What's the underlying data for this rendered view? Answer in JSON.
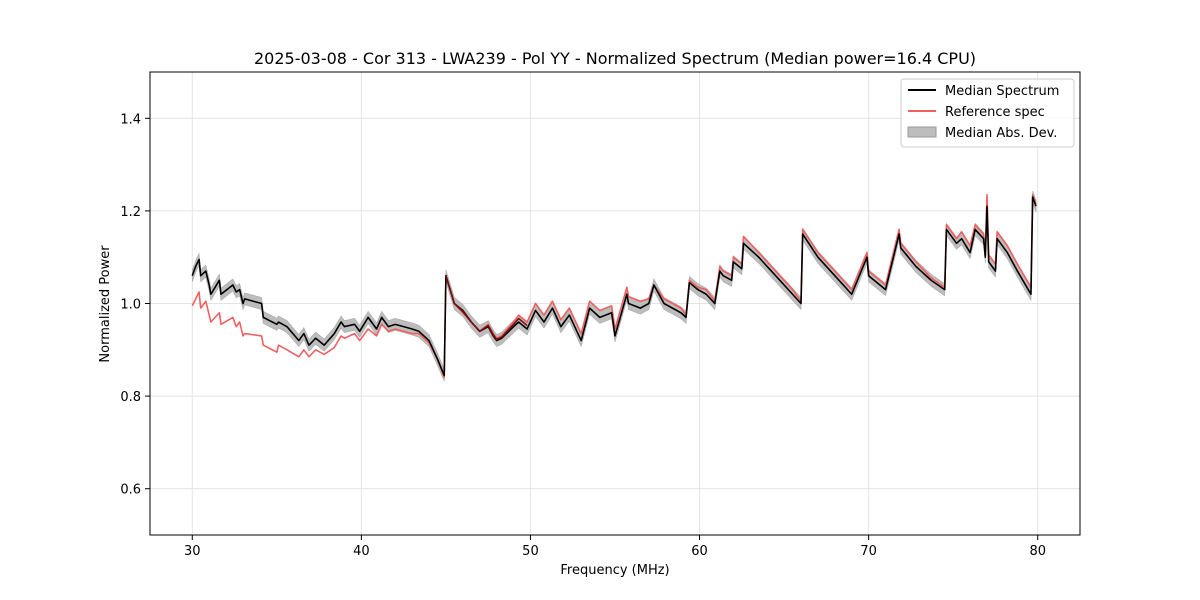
{
  "chart_data": {
    "type": "line",
    "title": "2025-03-08 - Cor 313 - LWA239 - Pol YY - Normalized Spectrum (Median power=16.4 CPU)",
    "xlabel": "Frequency (MHz)",
    "ylabel": "Normalized Power",
    "xlim": [
      27.5,
      82.5
    ],
    "ylim": [
      0.5,
      1.5
    ],
    "xticks": [
      30,
      40,
      50,
      60,
      70,
      80
    ],
    "yticks": [
      0.6,
      0.8,
      1.0,
      1.2,
      1.4
    ],
    "xtick_labels": [
      "30",
      "40",
      "50",
      "60",
      "70",
      "80"
    ],
    "ytick_labels": [
      "0.6",
      "0.8",
      "1.0",
      "1.2",
      "1.4"
    ],
    "grid": true,
    "legend_position": "top-right",
    "colors": {
      "median": "#000000",
      "reference": "#f06060",
      "mad": "#bdbdbd",
      "overlap": "#7a1010"
    },
    "series": [
      {
        "name": "Median Spectrum",
        "color": "#000000",
        "x": [
          30.0,
          30.2,
          30.4,
          30.5,
          30.8,
          31.0,
          31.1,
          31.6,
          31.7,
          32.4,
          32.6,
          32.8,
          33.0,
          33.1,
          34.1,
          34.2,
          35.0,
          35.1,
          35.6,
          36.3,
          36.6,
          36.9,
          37.3,
          37.8,
          38.4,
          38.8,
          39.0,
          39.6,
          39.9,
          40.4,
          40.9,
          41.2,
          41.6,
          42.0,
          42.5,
          43.0,
          43.4,
          44.0,
          44.5,
          44.9,
          45.0,
          45.5,
          46.0,
          46.5,
          47.0,
          47.5,
          47.8,
          48.0,
          48.3,
          49.0,
          49.3,
          49.8,
          50.3,
          50.8,
          51.3,
          51.8,
          52.3,
          53.0,
          53.5,
          54.1,
          54.8,
          55.0,
          55.7,
          55.8,
          56.5,
          57.0,
          57.3,
          57.9,
          58.4,
          58.9,
          59.2,
          59.4,
          59.9,
          60.4,
          60.9,
          61.2,
          61.4,
          61.9,
          62.0,
          62.5,
          62.6,
          63.5,
          64.5,
          65.5,
          66.0,
          66.1,
          67.0,
          68.0,
          69.0,
          69.9,
          70.0,
          71.0,
          71.8,
          71.9,
          72.8,
          73.7,
          74.5,
          74.6,
          75.2,
          75.5,
          76.0,
          76.3,
          76.8,
          76.9,
          77.0,
          77.1,
          77.5,
          77.6,
          78.2,
          78.8,
          79.6,
          79.7,
          79.9
        ],
        "y": [
          1.06,
          1.08,
          1.095,
          1.06,
          1.07,
          1.04,
          1.02,
          1.05,
          1.02,
          1.04,
          1.025,
          1.03,
          1.0,
          1.01,
          1.0,
          0.97,
          0.955,
          0.96,
          0.95,
          0.92,
          0.935,
          0.91,
          0.925,
          0.91,
          0.935,
          0.96,
          0.95,
          0.955,
          0.94,
          0.97,
          0.945,
          0.97,
          0.95,
          0.955,
          0.95,
          0.945,
          0.94,
          0.92,
          0.88,
          0.845,
          1.06,
          1.0,
          0.985,
          0.96,
          0.94,
          0.95,
          0.93,
          0.92,
          0.925,
          0.95,
          0.96,
          0.945,
          0.985,
          0.96,
          0.99,
          0.95,
          0.975,
          0.92,
          0.99,
          0.97,
          0.98,
          0.93,
          1.02,
          1.0,
          0.99,
          1.0,
          1.04,
          1.0,
          0.99,
          0.98,
          0.97,
          1.045,
          1.03,
          1.02,
          1.0,
          1.07,
          1.06,
          1.05,
          1.09,
          1.075,
          1.13,
          1.1,
          1.06,
          1.02,
          1.0,
          1.15,
          1.1,
          1.06,
          1.02,
          1.1,
          1.06,
          1.03,
          1.15,
          1.12,
          1.08,
          1.05,
          1.03,
          1.16,
          1.13,
          1.14,
          1.11,
          1.16,
          1.14,
          1.1,
          1.21,
          1.09,
          1.07,
          1.14,
          1.11,
          1.07,
          1.02,
          1.23,
          1.21
        ]
      },
      {
        "name": "Reference spec",
        "color": "#f06060",
        "x": [
          30.0,
          30.2,
          30.4,
          30.5,
          30.8,
          31.0,
          31.1,
          31.6,
          31.7,
          32.4,
          32.6,
          32.8,
          33.0,
          33.1,
          34.1,
          34.2,
          35.0,
          35.1,
          35.6,
          36.3,
          36.6,
          36.9,
          37.3,
          37.8,
          38.4,
          38.8,
          39.0,
          39.6,
          39.9,
          40.4,
          40.9,
          41.2,
          41.6,
          42.0,
          42.5,
          43.0,
          43.4,
          44.0,
          44.5,
          44.9,
          45.0,
          45.5,
          46.0,
          46.5,
          47.0,
          47.5,
          47.8,
          48.0,
          48.3,
          49.0,
          49.3,
          49.8,
          50.3,
          50.8,
          51.3,
          51.8,
          52.3,
          53.0,
          53.5,
          54.1,
          54.8,
          55.0,
          55.7,
          55.8,
          56.5,
          57.0,
          57.3,
          57.9,
          58.4,
          58.9,
          59.2,
          59.4,
          59.9,
          60.4,
          60.9,
          61.2,
          61.4,
          61.9,
          62.0,
          62.5,
          62.6,
          63.5,
          64.5,
          65.5,
          66.0,
          66.1,
          67.0,
          68.0,
          69.0,
          69.9,
          70.0,
          71.0,
          71.8,
          71.9,
          72.8,
          73.7,
          74.5,
          74.6,
          75.2,
          75.5,
          76.0,
          76.3,
          76.8,
          76.9,
          77.0,
          77.1,
          77.5,
          77.6,
          78.2,
          78.8,
          79.6,
          79.7,
          79.9
        ],
        "y": [
          0.995,
          1.01,
          1.025,
          0.99,
          1.005,
          0.975,
          0.96,
          0.98,
          0.955,
          0.97,
          0.95,
          0.96,
          0.93,
          0.935,
          0.93,
          0.91,
          0.895,
          0.91,
          0.9,
          0.885,
          0.9,
          0.885,
          0.9,
          0.89,
          0.905,
          0.93,
          0.925,
          0.935,
          0.92,
          0.945,
          0.93,
          0.955,
          0.94,
          0.945,
          0.94,
          0.935,
          0.935,
          0.915,
          0.88,
          0.84,
          1.06,
          1.0,
          0.98,
          0.96,
          0.94,
          0.955,
          0.935,
          0.925,
          0.93,
          0.96,
          0.975,
          0.96,
          1.0,
          0.975,
          1.005,
          0.965,
          0.99,
          0.935,
          1.005,
          0.985,
          0.995,
          0.945,
          1.035,
          1.015,
          1.005,
          1.01,
          1.04,
          1.01,
          1.0,
          0.99,
          0.975,
          1.05,
          1.035,
          1.03,
          1.005,
          1.08,
          1.07,
          1.06,
          1.1,
          1.085,
          1.145,
          1.11,
          1.07,
          1.03,
          1.005,
          1.16,
          1.11,
          1.07,
          1.03,
          1.11,
          1.07,
          1.04,
          1.16,
          1.13,
          1.09,
          1.055,
          1.035,
          1.17,
          1.14,
          1.155,
          1.125,
          1.17,
          1.15,
          1.11,
          1.235,
          1.105,
          1.085,
          1.155,
          1.125,
          1.085,
          1.035,
          1.235,
          1.215
        ]
      }
    ],
    "mad_band": {
      "name": "Median Abs. Dev.",
      "color": "#bdbdbd",
      "width": 0.013
    }
  }
}
